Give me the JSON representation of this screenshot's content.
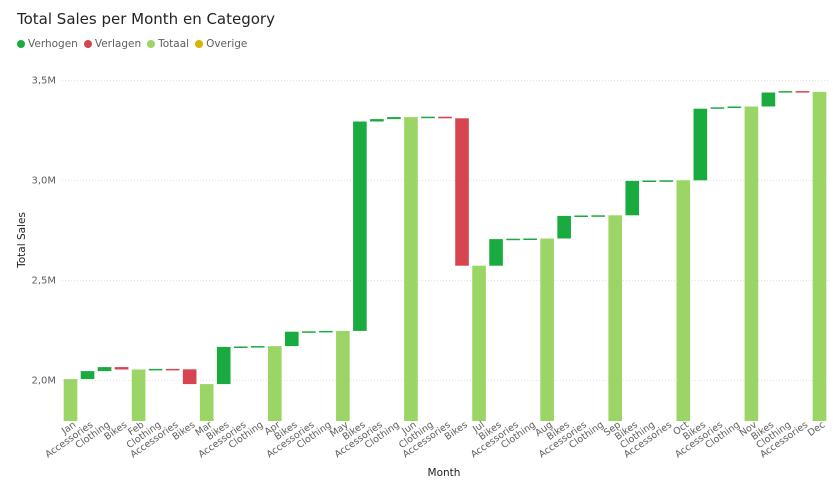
{
  "chart_data": {
    "type": "waterfall",
    "title": "Total Sales per Month en Category",
    "xlabel": "Month",
    "ylabel": "Total Sales",
    "ylim": [
      1.8,
      3.5
    ],
    "yticks": [
      2.0,
      2.5,
      3.0,
      3.5
    ],
    "ytick_labels": [
      "2,0M",
      "2,5M",
      "3,0M",
      "3,5M"
    ],
    "grid": true,
    "legend_position": "top-left",
    "legend": [
      {
        "label": "Verhogen",
        "color": "#1aab40"
      },
      {
        "label": "Verlagen",
        "color": "#d64550"
      },
      {
        "label": "Totaal",
        "color": "#9bd565"
      },
      {
        "label": "Overige",
        "color": "#d9b300"
      }
    ],
    "categories": [
      "Jan",
      "Accessories",
      "Clothing",
      "Bikes",
      "Feb",
      "Clothing",
      "Accessories",
      "Bikes",
      "Mar",
      "Bikes",
      "Accessories",
      "Clothing",
      "Apr",
      "Bikes",
      "Accessories",
      "Clothing",
      "May",
      "Bikes",
      "Accessories",
      "Clothing",
      "Jun",
      "Clothing",
      "Accessories",
      "Bikes",
      "Jul",
      "Bikes",
      "Accessories",
      "Clothing",
      "Aug",
      "Bikes",
      "Accessories",
      "Clothing",
      "Sep",
      "Bikes",
      "Clothing",
      "Accessories",
      "Oct",
      "Bikes",
      "Accessories",
      "Clothing",
      "Nov",
      "Bikes",
      "Clothing",
      "Accessories",
      "Dec"
    ],
    "kinds": [
      "total",
      "increase",
      "increase",
      "decrease",
      "total",
      "increase",
      "decrease",
      "decrease",
      "total",
      "increase",
      "increase",
      "increase",
      "total",
      "increase",
      "increase",
      "increase",
      "total",
      "increase",
      "increase",
      "increase",
      "total",
      "increase",
      "decrease",
      "decrease",
      "total",
      "increase",
      "increase",
      "increase",
      "total",
      "increase",
      "increase",
      "increase",
      "total",
      "increase",
      "increase",
      "increase",
      "total",
      "increase",
      "increase",
      "increase",
      "total",
      "increase",
      "increase",
      "decrease",
      "total"
    ],
    "values": [
      2.007,
      0.04,
      0.02,
      -0.012,
      2.055,
      0.003,
      -0.002,
      -0.074,
      1.982,
      0.186,
      0.002,
      0.002,
      2.172,
      0.072,
      0.002,
      0.002,
      2.248,
      1.047,
      0.012,
      0.01,
      3.317,
      0.002,
      -0.008,
      -0.737,
      2.574,
      0.133,
      0.002,
      0.001,
      2.71,
      0.113,
      0.002,
      0.001,
      2.826,
      0.172,
      0.002,
      0.001,
      3.001,
      0.358,
      0.007,
      0.004,
      3.37,
      0.07,
      0.007,
      -0.004,
      3.443
    ]
  }
}
